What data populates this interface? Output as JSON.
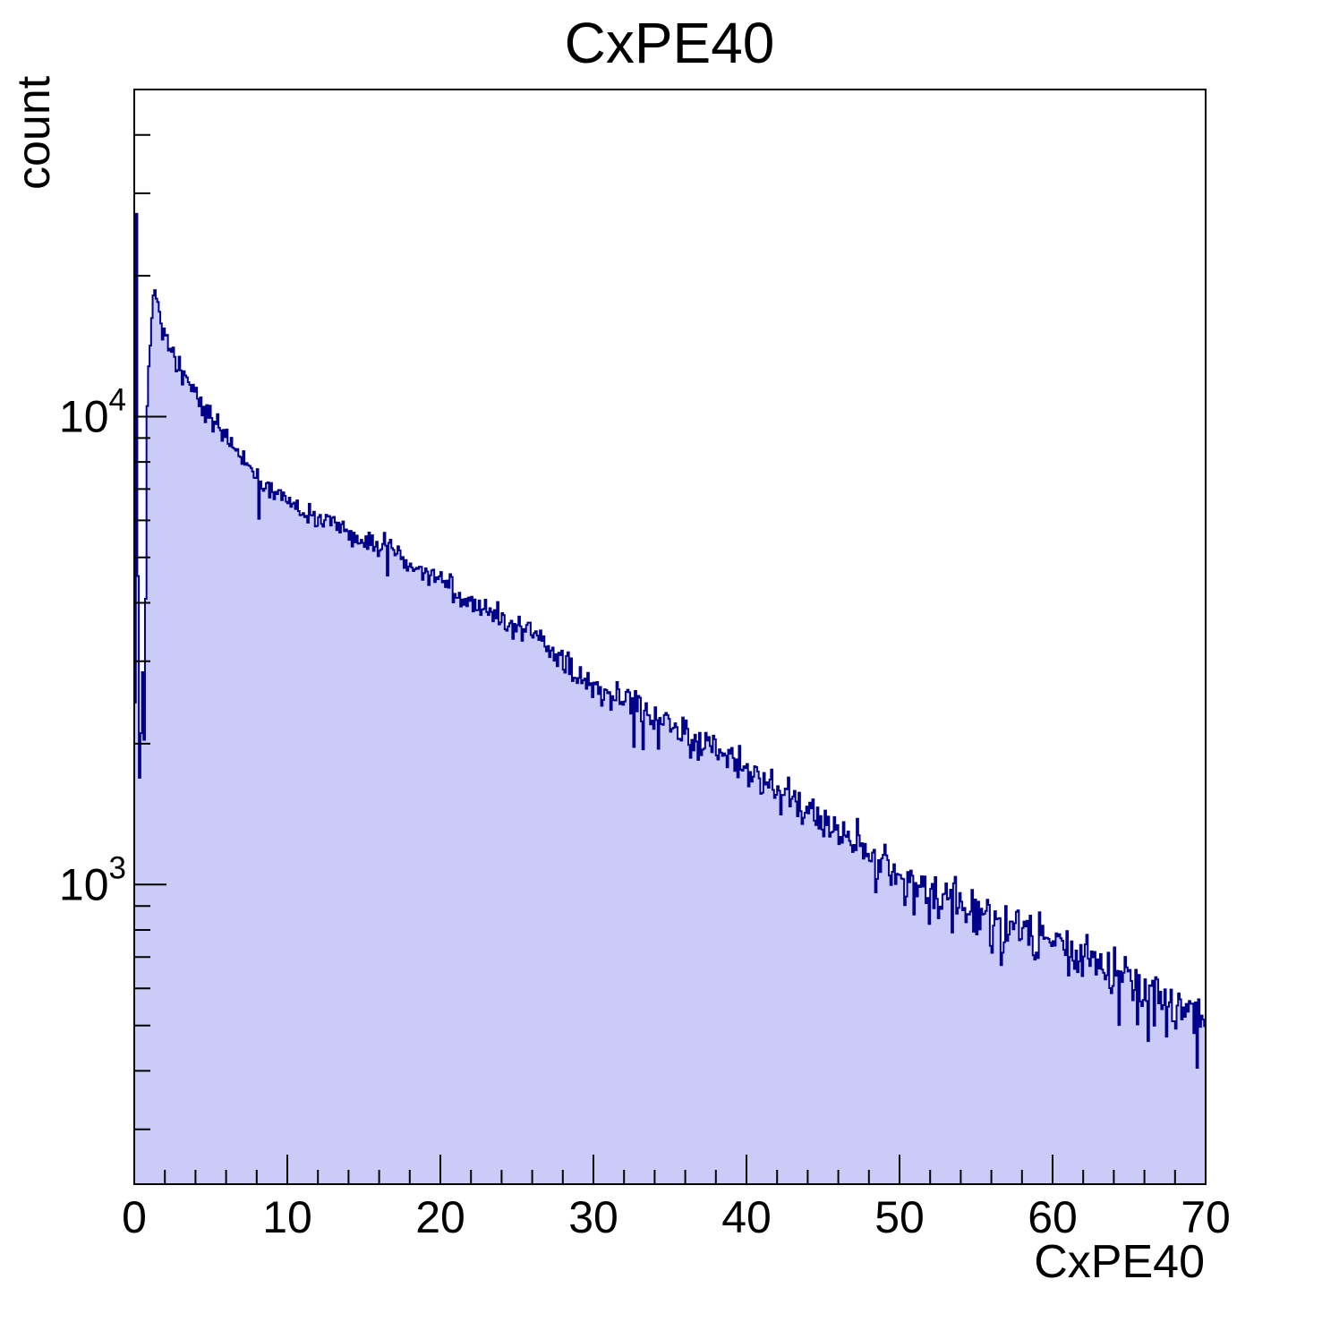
{
  "title": "CxPE40",
  "x_axis": {
    "label": "CxPE40",
    "min": 0,
    "max": 70,
    "major_step": 10,
    "minor_step": 2,
    "tick_labels": [
      "0",
      "10",
      "20",
      "30",
      "40",
      "50",
      "60",
      "70"
    ]
  },
  "y_axis": {
    "label": "count",
    "scale": "log",
    "min": 229,
    "max": 50000,
    "decade_base": "10",
    "decades": [
      3,
      4
    ]
  },
  "chart_data": {
    "type": "bar",
    "subtype": "histogram-step-filled",
    "title": "CxPE40",
    "xlabel": "CxPE40",
    "ylabel": "count",
    "x_range": [
      0,
      70
    ],
    "bin_width": 0.1,
    "y_scale": "log",
    "ylim": [
      229,
      50000
    ],
    "grid": false,
    "legend": false,
    "envelope": [
      [
        0.05,
        2600
      ],
      [
        0.15,
        27000
      ],
      [
        0.25,
        4500
      ],
      [
        0.35,
        1800
      ],
      [
        0.45,
        2100
      ],
      [
        0.55,
        2850
      ],
      [
        0.65,
        1900
      ],
      [
        0.75,
        4200
      ],
      [
        0.85,
        10700
      ],
      [
        0.95,
        12500
      ],
      [
        1.1,
        15200
      ],
      [
        1.25,
        17600
      ],
      [
        1.4,
        18800
      ],
      [
        1.55,
        17600
      ],
      [
        1.75,
        16200
      ],
      [
        2.0,
        15000
      ],
      [
        2.5,
        13600
      ],
      [
        3.0,
        12700
      ],
      [
        3.5,
        11900
      ],
      [
        4.0,
        11200
      ],
      [
        4.5,
        10500
      ],
      [
        5.0,
        10000
      ],
      [
        5.5,
        9600
      ],
      [
        6.0,
        9100
      ],
      [
        6.5,
        8600
      ],
      [
        7.0,
        8200
      ],
      [
        7.5,
        7800
      ],
      [
        8.0,
        7450
      ],
      [
        8.5,
        7200
      ],
      [
        9.0,
        7000
      ],
      [
        9.5,
        6800
      ],
      [
        10,
        6600
      ],
      [
        11,
        6300
      ],
      [
        12,
        6050
      ],
      [
        13,
        5850
      ],
      [
        14,
        5600
      ],
      [
        15,
        5400
      ],
      [
        16,
        5250
      ],
      [
        17,
        5050
      ],
      [
        18,
        4850
      ],
      [
        19,
        4650
      ],
      [
        20,
        4480
      ],
      [
        21,
        4260
      ],
      [
        22,
        4060
      ],
      [
        23,
        3880
      ],
      [
        24,
        3700
      ],
      [
        25,
        3530
      ],
      [
        26,
        3370
      ],
      [
        27,
        3180
      ],
      [
        28,
        2990
      ],
      [
        29,
        2820
      ],
      [
        30,
        2680
      ],
      [
        31,
        2550
      ],
      [
        32,
        2460
      ],
      [
        33,
        2370
      ],
      [
        34,
        2270
      ],
      [
        35,
        2160
      ],
      [
        36,
        2080
      ],
      [
        37,
        2010
      ],
      [
        38,
        1940
      ],
      [
        39,
        1870
      ],
      [
        40,
        1790
      ],
      [
        41,
        1700
      ],
      [
        42,
        1610
      ],
      [
        43,
        1520
      ],
      [
        44,
        1430
      ],
      [
        45,
        1330
      ],
      [
        46,
        1270
      ],
      [
        47,
        1220
      ],
      [
        48,
        1170
      ],
      [
        49,
        1110
      ],
      [
        50,
        1060
      ],
      [
        51,
        1020
      ],
      [
        52,
        970
      ],
      [
        53,
        930
      ],
      [
        54,
        900
      ],
      [
        55,
        870
      ],
      [
        56,
        840
      ],
      [
        57,
        815
      ],
      [
        58,
        790
      ],
      [
        59,
        770
      ],
      [
        60,
        750
      ],
      [
        61,
        720
      ],
      [
        62,
        695
      ],
      [
        63,
        670
      ],
      [
        64,
        645
      ],
      [
        65,
        620
      ],
      [
        66,
        600
      ],
      [
        67,
        575
      ],
      [
        68,
        550
      ],
      [
        69,
        530
      ],
      [
        70,
        515
      ]
    ],
    "spikes": [
      [
        1.9,
        0.93
      ],
      [
        2.55,
        1.04
      ],
      [
        2.75,
        0.95
      ],
      [
        2.95,
        1.05
      ],
      [
        3.15,
        0.94
      ],
      [
        4.65,
        0.94
      ],
      [
        4.95,
        1.05
      ],
      [
        5.15,
        0.94
      ],
      [
        5.45,
        1.05
      ],
      [
        5.75,
        0.95
      ],
      [
        8.0,
        1.04
      ],
      [
        8.15,
        0.82
      ],
      [
        16.35,
        1.09
      ],
      [
        16.55,
        0.89
      ],
      [
        16.75,
        1.07
      ],
      [
        32.3,
        1.07
      ],
      [
        32.6,
        0.82
      ],
      [
        33.3,
        0.83
      ],
      [
        34.3,
        0.87
      ],
      [
        36.1,
        1.04
      ],
      [
        64.0,
        1.14
      ],
      [
        66.3,
        0.78
      ],
      [
        67.4,
        0.84
      ],
      [
        69.5,
        1.09
      ]
    ],
    "noise": {
      "sigma_scale": 2.0,
      "max_rel": 0.16,
      "seed": 13
    },
    "style": {
      "fill_color": "#cbcbf7",
      "line_color": "#00008a",
      "frame_color": "#000000",
      "text_color": "#000000",
      "background": "#ffffff"
    }
  }
}
